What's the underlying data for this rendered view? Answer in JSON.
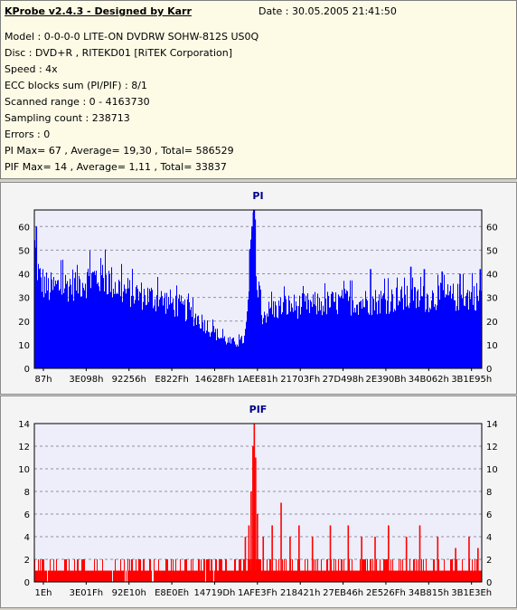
{
  "info": {
    "title": "KProbe v2.4.3 - Designed by Karr",
    "date": "Date : 30.05.2005 21:41:50",
    "lines": [
      "Model : 0-0-0-0 LITE-ON DVDRW SOHW-812S  US0Q",
      "Disc : DVD+R , RITEKD01 [RiTEK Corporation]",
      "Speed : 4x",
      "ECC blocks sum (PI/PIF) : 8/1",
      "Scanned range : 0 - 4163730",
      "Sampling count : 238713",
      "Errors : 0",
      "PI Max= 67 , Average= 19,30 , Total= 586529",
      "PIF Max= 14 , Average= 1,11 , Total= 33837"
    ]
  },
  "colors": {
    "pi": "#0000ff",
    "pif": "#ff0000",
    "title": "#00008b",
    "plot_bg": "#eeeefa",
    "grid": "#9090a0"
  },
  "chart_data": [
    {
      "type": "bar",
      "title": "PI",
      "ylim": [
        0,
        67
      ],
      "yticks": [
        0,
        10,
        20,
        30,
        40,
        50,
        60
      ],
      "categories": [
        "87h",
        "3E098h",
        "92256h",
        "E822Fh",
        "14628Fh",
        "1AEE81h",
        "21703Fh",
        "27D498h",
        "2E390Bh",
        "34B062h",
        "3B1E95h"
      ],
      "grid": true,
      "envelope": {
        "x": [
          0,
          0.01,
          0.03,
          0.08,
          0.15,
          0.2,
          0.26,
          0.3,
          0.34,
          0.38,
          0.4,
          0.42,
          0.44,
          0.46,
          0.47,
          0.475,
          0.48,
          0.485,
          0.49,
          0.5,
          0.51,
          0.53,
          0.56,
          0.6,
          0.65,
          0.7,
          0.75,
          0.8,
          0.85,
          0.9,
          0.95,
          1.0
        ],
        "y": [
          56,
          42,
          37,
          39,
          43,
          36,
          33,
          31,
          27,
          21,
          17,
          14,
          12,
          12,
          14,
          22,
          35,
          55,
          64,
          32,
          25,
          27,
          29,
          29,
          30,
          31,
          31,
          32,
          32,
          33,
          33,
          34
        ]
      },
      "spikes": [
        {
          "x": 0.003,
          "y": 60
        },
        {
          "x": 0.48,
          "y": 50
        },
        {
          "x": 0.485,
          "y": 60
        },
        {
          "x": 0.488,
          "y": 66
        },
        {
          "x": 0.49,
          "y": 67
        },
        {
          "x": 0.492,
          "y": 63
        },
        {
          "x": 0.75,
          "y": 42
        },
        {
          "x": 0.84,
          "y": 43
        },
        {
          "x": 0.87,
          "y": 42
        },
        {
          "x": 0.91,
          "y": 41
        },
        {
          "x": 0.95,
          "y": 40
        },
        {
          "x": 0.995,
          "y": 42
        }
      ]
    },
    {
      "type": "bar",
      "title": "PIF",
      "ylim": [
        0,
        14
      ],
      "yticks": [
        0,
        2,
        4,
        6,
        8,
        10,
        12,
        14
      ],
      "categories": [
        "1Eh",
        "3E01Fh",
        "92E10h",
        "E8E0Eh",
        "14719Dh",
        "1AFE3Fh",
        "218421h",
        "27EB46h",
        "2E526Fh",
        "34B815h",
        "3B1E3Eh"
      ],
      "grid": true,
      "baseline": [
        1,
        2
      ],
      "spikes": [
        {
          "x": 0.47,
          "y": 4
        },
        {
          "x": 0.478,
          "y": 5
        },
        {
          "x": 0.483,
          "y": 8
        },
        {
          "x": 0.487,
          "y": 12
        },
        {
          "x": 0.49,
          "y": 14
        },
        {
          "x": 0.493,
          "y": 11
        },
        {
          "x": 0.497,
          "y": 6
        },
        {
          "x": 0.51,
          "y": 4
        },
        {
          "x": 0.53,
          "y": 5
        },
        {
          "x": 0.55,
          "y": 7
        },
        {
          "x": 0.57,
          "y": 4
        },
        {
          "x": 0.59,
          "y": 5
        },
        {
          "x": 0.62,
          "y": 4
        },
        {
          "x": 0.66,
          "y": 5
        },
        {
          "x": 0.7,
          "y": 5
        },
        {
          "x": 0.73,
          "y": 4
        },
        {
          "x": 0.76,
          "y": 4
        },
        {
          "x": 0.79,
          "y": 5
        },
        {
          "x": 0.83,
          "y": 4
        },
        {
          "x": 0.86,
          "y": 5
        },
        {
          "x": 0.9,
          "y": 4
        },
        {
          "x": 0.94,
          "y": 3
        },
        {
          "x": 0.97,
          "y": 4
        },
        {
          "x": 0.99,
          "y": 3
        }
      ]
    }
  ]
}
